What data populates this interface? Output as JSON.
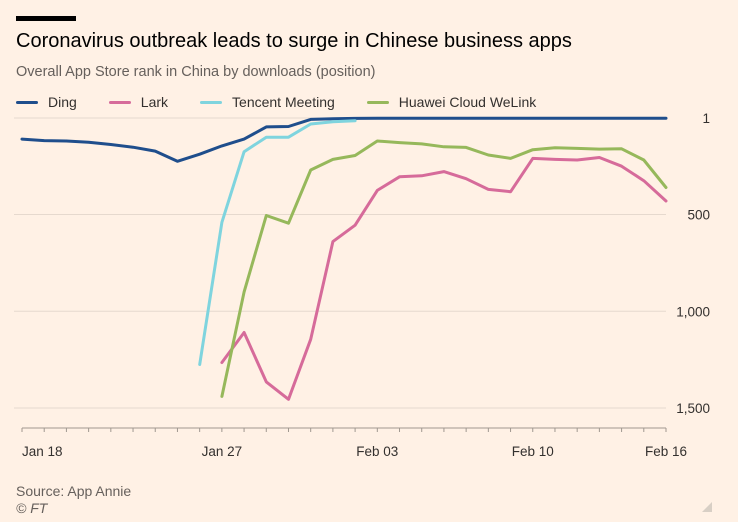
{
  "header": {
    "title": "Coronavirus outbreak leads to surge in Chinese business apps",
    "subtitle": "Overall App Store rank in China by downloads (position)"
  },
  "footer": {
    "source": "Source: App Annie",
    "copyright": "© FT"
  },
  "chart_data": {
    "type": "line",
    "title": "Coronavirus outbreak leads to surge in Chinese business apps",
    "subtitle": "Overall App Store rank in China by downloads (position)",
    "y_axis": {
      "ticks": [
        1,
        500,
        1000,
        1500
      ],
      "tick_labels": [
        "1",
        "500",
        "1,000",
        "1,500"
      ],
      "inverted": true,
      "range": [
        1,
        1600
      ],
      "position": "right"
    },
    "x_axis": {
      "tick_labels": [
        "Jan 18",
        "Jan 27",
        "Feb 03",
        "Feb 10",
        "Feb 16"
      ],
      "tick_days": [
        0,
        9,
        16,
        23,
        29
      ],
      "range_days": [
        0,
        29
      ]
    },
    "x": [
      "Jan 18",
      "Jan 19",
      "Jan 20",
      "Jan 21",
      "Jan 22",
      "Jan 23",
      "Jan 24",
      "Jan 25",
      "Jan 26",
      "Jan 27",
      "Jan 28",
      "Jan 29",
      "Jan 30",
      "Jan 31",
      "Feb 01",
      "Feb 02",
      "Feb 03",
      "Feb 04",
      "Feb 05",
      "Feb 06",
      "Feb 07",
      "Feb 08",
      "Feb 09",
      "Feb 10",
      "Feb 11",
      "Feb 12",
      "Feb 13",
      "Feb 14",
      "Feb 15",
      "Feb 16"
    ],
    "series": [
      {
        "name": "Ding",
        "color": "#1f4e8c",
        "values": [
          110,
          118,
          120,
          126,
          138,
          152,
          172,
          225,
          188,
          145,
          110,
          47,
          45,
          8,
          5,
          3,
          2,
          2,
          2,
          2,
          2,
          2,
          2,
          2,
          2,
          2,
          2,
          2,
          2,
          2
        ]
      },
      {
        "name": "Lark",
        "color": "#d66b9a",
        "values": [
          null,
          null,
          null,
          null,
          null,
          null,
          null,
          null,
          null,
          1265,
          1110,
          1365,
          1455,
          1145,
          640,
          555,
          375,
          305,
          300,
          278,
          315,
          370,
          382,
          210,
          215,
          218,
          205,
          250,
          325,
          430
        ]
      },
      {
        "name": "Tencent Meeting",
        "color": "#7fd4de",
        "values": [
          null,
          null,
          null,
          null,
          null,
          null,
          null,
          null,
          1275,
          540,
          175,
          100,
          100,
          32,
          20,
          15,
          null,
          null,
          null,
          null,
          null,
          null,
          null,
          null,
          null,
          null,
          null,
          null,
          null,
          null
        ]
      },
      {
        "name": "Huawei Cloud WeLink",
        "color": "#96b85b",
        "values": [
          null,
          null,
          null,
          null,
          null,
          null,
          null,
          null,
          null,
          1440,
          900,
          505,
          545,
          270,
          215,
          195,
          120,
          128,
          135,
          150,
          153,
          192,
          210,
          165,
          155,
          158,
          162,
          160,
          218,
          360
        ]
      }
    ]
  }
}
